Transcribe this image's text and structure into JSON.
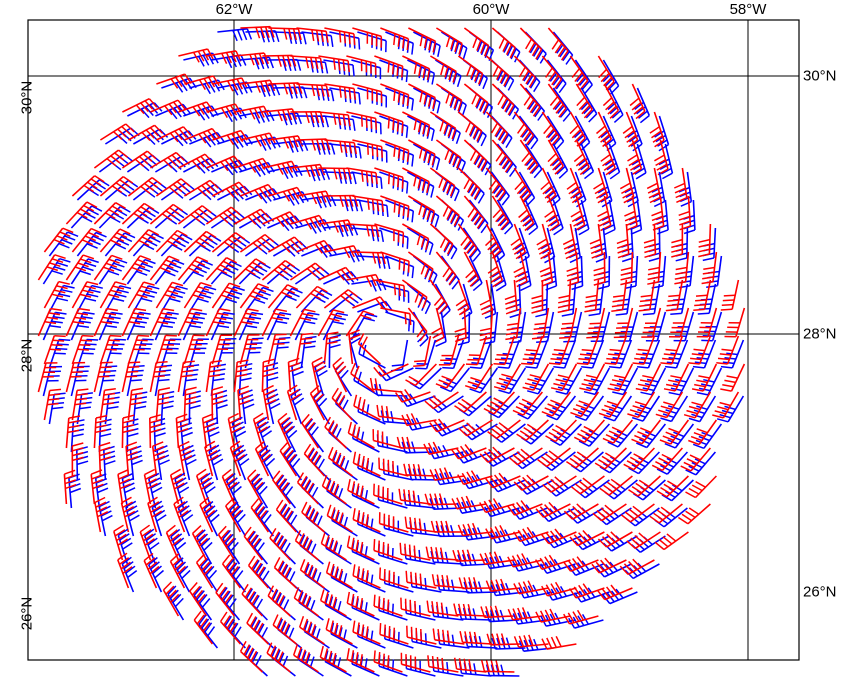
{
  "map": {
    "lon_labels": [
      "62°W",
      "60°W",
      "58°W"
    ],
    "lat_labels_right": [
      "30°N",
      "28°N",
      "26°N"
    ],
    "lat_labels_left": [
      "30°N",
      "28°N",
      "26°N"
    ],
    "extent": {
      "lon_min": -63.6,
      "lon_max": -57.6,
      "lat_min": 25.35,
      "lat_max": 30.42
    },
    "vortex_center": {
      "lon": -60.8,
      "lat": 27.85
    },
    "colors": {
      "series_a": "#ff0000",
      "series_b": "#0000ff",
      "grid": "#000000",
      "frame": "#000000"
    },
    "layers": [
      {
        "kind": "wind-barbs",
        "color_key": "series_a",
        "rotation": "cyclonic"
      },
      {
        "kind": "wind-barbs",
        "color_key": "series_b",
        "rotation": "cyclonic"
      }
    ]
  }
}
